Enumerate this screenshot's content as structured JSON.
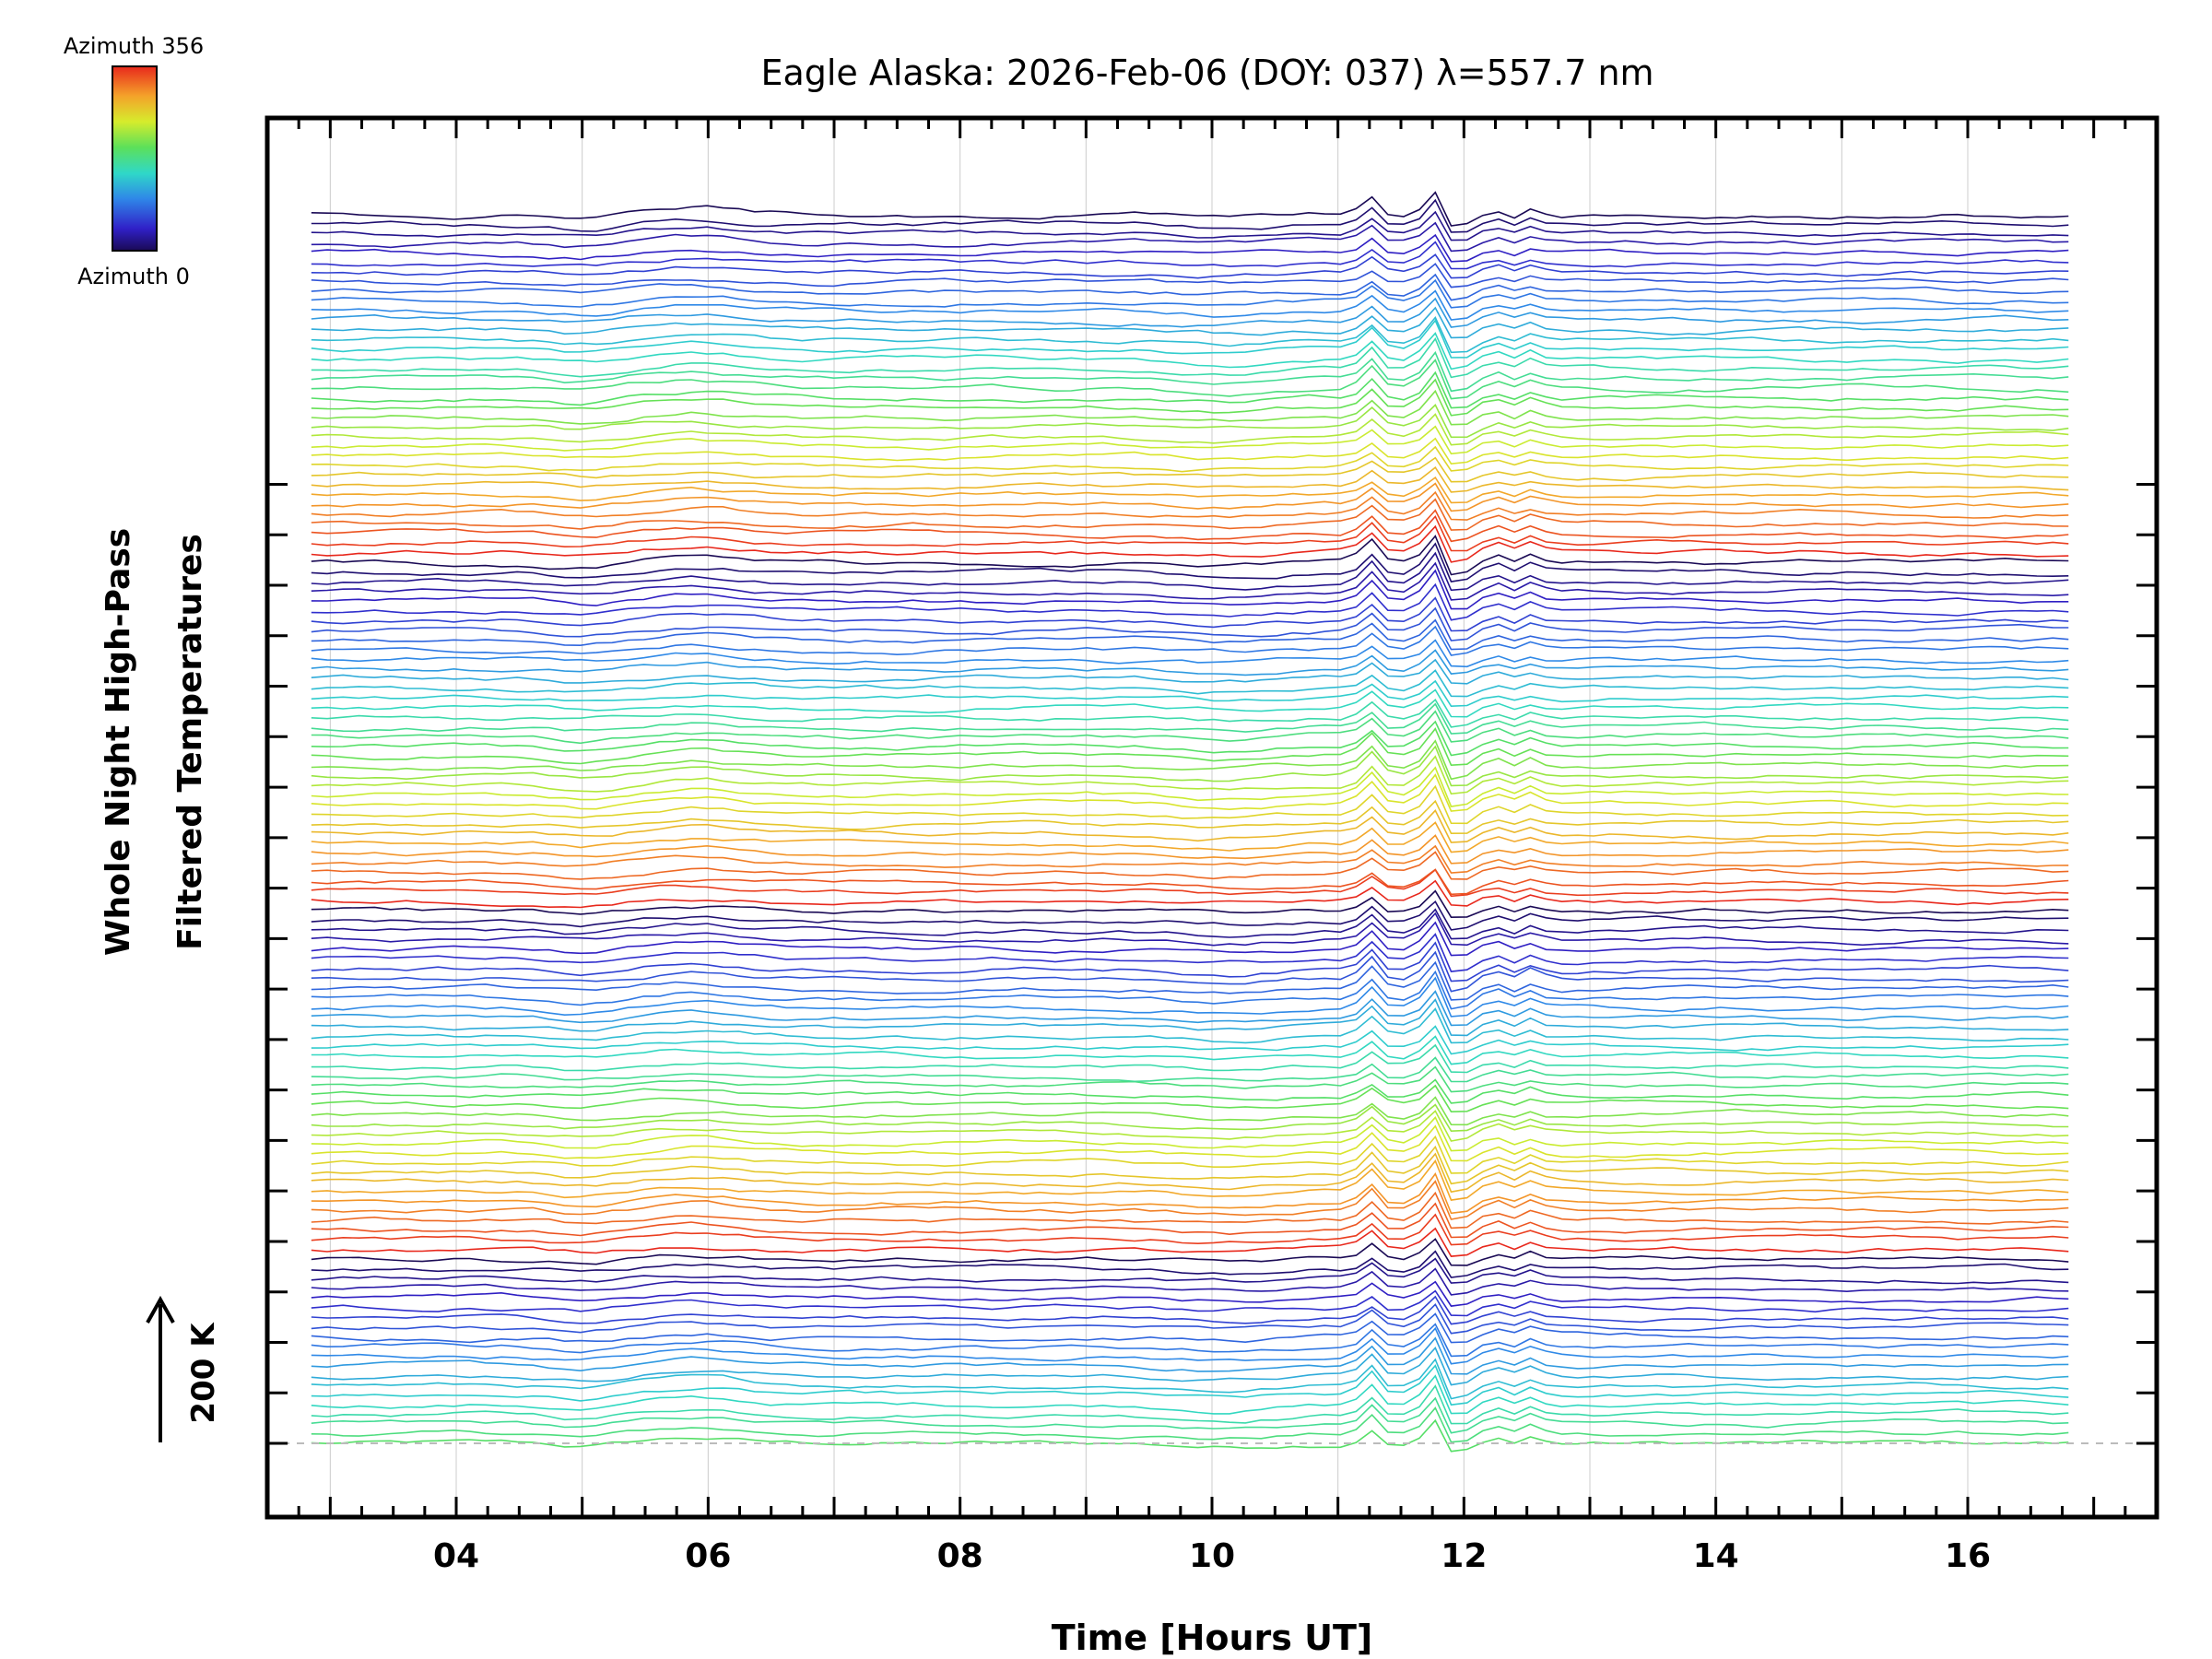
{
  "chart_data": {
    "type": "line",
    "title": "Eagle Alaska: 2026-Feb-06 (DOY: 037) λ=557.7 nm",
    "xlabel": "Time [Hours UT]",
    "ylabel_line1": "Whole Night High-Pass",
    "ylabel_line2": "Filtered Temperatures",
    "scale_bar_label": "200 K",
    "colorbar": {
      "top_label": "Azimuth 356",
      "bottom_label": "Azimuth 0",
      "min": 0,
      "max": 356,
      "colormap": "rainbow"
    },
    "x_range": [
      2.5,
      17.5
    ],
    "x_major_ticks": [
      4,
      6,
      8,
      10,
      12,
      14,
      16
    ],
    "x_tick_labels": [
      "04",
      "06",
      "08",
      "10",
      "12",
      "14",
      "16"
    ],
    "x_grid_hours": [
      3,
      4,
      5,
      6,
      7,
      8,
      9,
      10,
      11,
      12,
      13,
      14,
      15,
      16
    ],
    "data_time_range": [
      2.85,
      16.8
    ],
    "n_traces": 128,
    "trace_offset_K": 14,
    "y_range_K": [
      -80,
      1520
    ],
    "baseline": 0,
    "typical_amplitude_K": 12,
    "peak_events": [
      {
        "t": 11.25,
        "amplitude_K": 28
      },
      {
        "t": 11.75,
        "amplitude_K": 40
      },
      {
        "t": 11.95,
        "amplitude_K": -22
      },
      {
        "t": 12.25,
        "amplitude_K": 10
      },
      {
        "t": 12.55,
        "amplitude_K": 12
      }
    ]
  },
  "colors": {
    "axis": "#000000",
    "grid": "#cccccc",
    "baseline": "#bbbbbb"
  }
}
